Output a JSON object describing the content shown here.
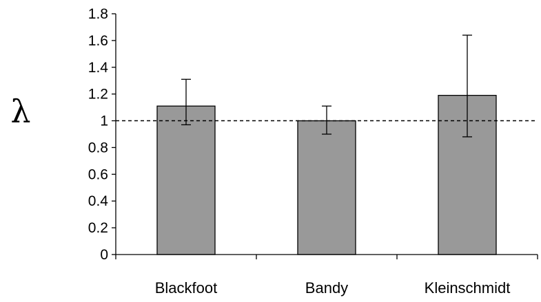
{
  "chart_data": {
    "type": "bar",
    "categories": [
      "Blackfoot",
      "Bandy",
      "Kleinschmidt"
    ],
    "values": [
      1.11,
      1.0,
      1.19
    ],
    "error_low": [
      0.97,
      0.9,
      0.88
    ],
    "error_high": [
      1.31,
      1.11,
      1.64
    ],
    "reference_line": 1.0,
    "title": "",
    "xlabel": "",
    "ylabel": "λ",
    "ylim": [
      0,
      1.8
    ],
    "yticks": [
      0,
      0.2,
      0.4,
      0.6,
      0.8,
      1,
      1.2,
      1.4,
      1.6,
      1.8
    ],
    "ytick_labels": [
      "0",
      "0.2",
      "0.4",
      "0.6",
      "0.8",
      "1",
      "1.2",
      "1.4",
      "1.6",
      "1.8"
    ],
    "grid": false,
    "legend": "none",
    "bar_color": "#999999",
    "bar_edge_color": "#000000"
  }
}
